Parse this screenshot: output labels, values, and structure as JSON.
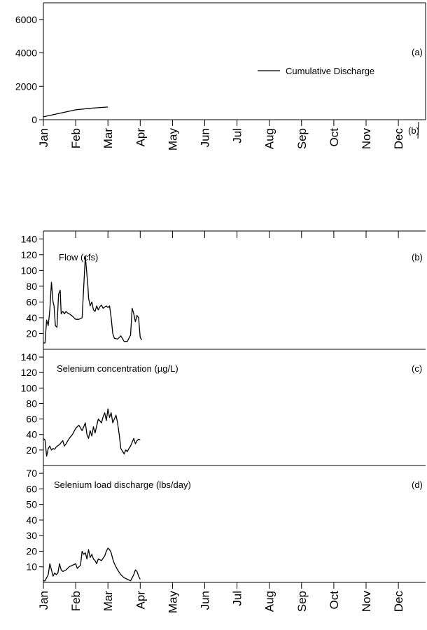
{
  "chart_data": [
    {
      "id": "a",
      "type": "line",
      "panel_label": "(a)",
      "stray_label": "(b)",
      "legend": "Cumulative Discharge",
      "months": [
        "Jan",
        "Feb",
        "Mar",
        "Apr",
        "May",
        "Jun",
        "Jul",
        "Aug",
        "Sep",
        "Oct",
        "Nov",
        "Dec"
      ],
      "yticks": [
        0,
        2000,
        4000,
        6000
      ],
      "ylim": [
        0,
        7000
      ],
      "series": [
        {
          "name": "Cumulative Discharge",
          "x": [
            0,
            0.5,
            1,
            1.5,
            2
          ],
          "y": [
            170,
            380,
            590,
            690,
            760
          ]
        }
      ]
    },
    {
      "id": "b",
      "type": "line",
      "panel_label": "(b)",
      "series_label": "Flow (cfs)",
      "yticks": [
        20,
        40,
        60,
        80,
        100,
        120,
        140
      ],
      "ylim": [
        0,
        150
      ],
      "series": [
        {
          "x": [
            0,
            0.05,
            0.1,
            0.15,
            0.2,
            0.25,
            0.3,
            0.33,
            0.37,
            0.42,
            0.47,
            0.52,
            0.55,
            0.6,
            0.65,
            0.7,
            0.75,
            0.8,
            0.9,
            1,
            1.1,
            1.2,
            1.3,
            1.38,
            1.4,
            1.45,
            1.5,
            1.55,
            1.6,
            1.65,
            1.7,
            1.75,
            1.8,
            1.85,
            1.95,
            2,
            2.05,
            2.1,
            2.15,
            2.2,
            2.3,
            2.4,
            2.5,
            2.6,
            2.7,
            2.75,
            2.8,
            2.85,
            2.9,
            2.95,
            3,
            3.05
          ],
          "y": [
            8,
            8,
            37,
            30,
            50,
            85,
            60,
            55,
            30,
            28,
            70,
            75,
            45,
            48,
            45,
            48,
            46,
            45,
            42,
            38,
            38,
            40,
            118,
            80,
            65,
            55,
            60,
            50,
            48,
            55,
            50,
            54,
            56,
            52,
            55,
            53,
            55,
            40,
            20,
            14,
            13,
            17,
            10,
            10,
            18,
            52,
            45,
            35,
            43,
            40,
            15,
            12
          ]
        }
      ]
    },
    {
      "id": "c",
      "type": "line",
      "panel_label": "(c)",
      "series_label": "Selenium concentration (µg/L)",
      "yticks": [
        20,
        40,
        60,
        80,
        100,
        120,
        140
      ],
      "ylim": [
        0,
        150
      ],
      "series": [
        {
          "x": [
            0,
            0.05,
            0.1,
            0.15,
            0.2,
            0.25,
            0.3,
            0.35,
            0.4,
            0.5,
            0.6,
            0.65,
            0.7,
            0.8,
            0.9,
            1,
            1.1,
            1.2,
            1.3,
            1.35,
            1.4,
            1.45,
            1.5,
            1.55,
            1.6,
            1.7,
            1.8,
            1.85,
            1.9,
            1.95,
            2,
            2.05,
            2.1,
            2.15,
            2.2,
            2.25,
            2.3,
            2.35,
            2.4,
            2.5,
            2.55,
            2.6,
            2.65,
            2.7,
            2.75,
            2.8,
            2.85,
            2.9,
            2.95,
            3
          ],
          "y": [
            35,
            33,
            12,
            22,
            25,
            20,
            22,
            21,
            24,
            27,
            32,
            25,
            28,
            35,
            40,
            48,
            52,
            45,
            55,
            40,
            35,
            45,
            38,
            50,
            42,
            60,
            55,
            63,
            68,
            58,
            73,
            62,
            68,
            55,
            60,
            65,
            55,
            40,
            22,
            15,
            20,
            18,
            22,
            25,
            30,
            35,
            28,
            32,
            34,
            33
          ]
        }
      ]
    },
    {
      "id": "d",
      "type": "line",
      "panel_label": "(d)",
      "series_label": "Selenium load discharge (lbs/day)",
      "yticks": [
        10,
        20,
        30,
        40,
        50,
        60,
        70
      ],
      "ylim": [
        0,
        75
      ],
      "series": [
        {
          "x": [
            0,
            0.05,
            0.1,
            0.15,
            0.2,
            0.25,
            0.3,
            0.35,
            0.4,
            0.45,
            0.5,
            0.55,
            0.6,
            0.7,
            0.8,
            0.9,
            1,
            1.05,
            1.1,
            1.15,
            1.2,
            1.25,
            1.3,
            1.35,
            1.4,
            1.45,
            1.5,
            1.55,
            1.6,
            1.65,
            1.7,
            1.8,
            1.9,
            1.95,
            2,
            2.05,
            2.1,
            2.15,
            2.2,
            2.3,
            2.4,
            2.5,
            2.6,
            2.7,
            2.75,
            2.8,
            2.85,
            2.9,
            2.95,
            3
          ],
          "y": [
            1,
            1,
            3,
            5,
            12,
            8,
            4,
            6,
            5,
            6,
            12,
            8,
            7,
            8,
            10,
            11,
            12,
            9,
            10,
            11,
            20,
            18,
            19,
            15,
            21,
            16,
            18,
            15,
            14,
            12,
            15,
            14,
            17,
            20,
            22,
            21,
            19,
            15,
            12,
            8,
            5,
            3,
            2,
            1,
            3,
            5,
            8,
            7,
            4,
            2
          ]
        }
      ]
    }
  ]
}
